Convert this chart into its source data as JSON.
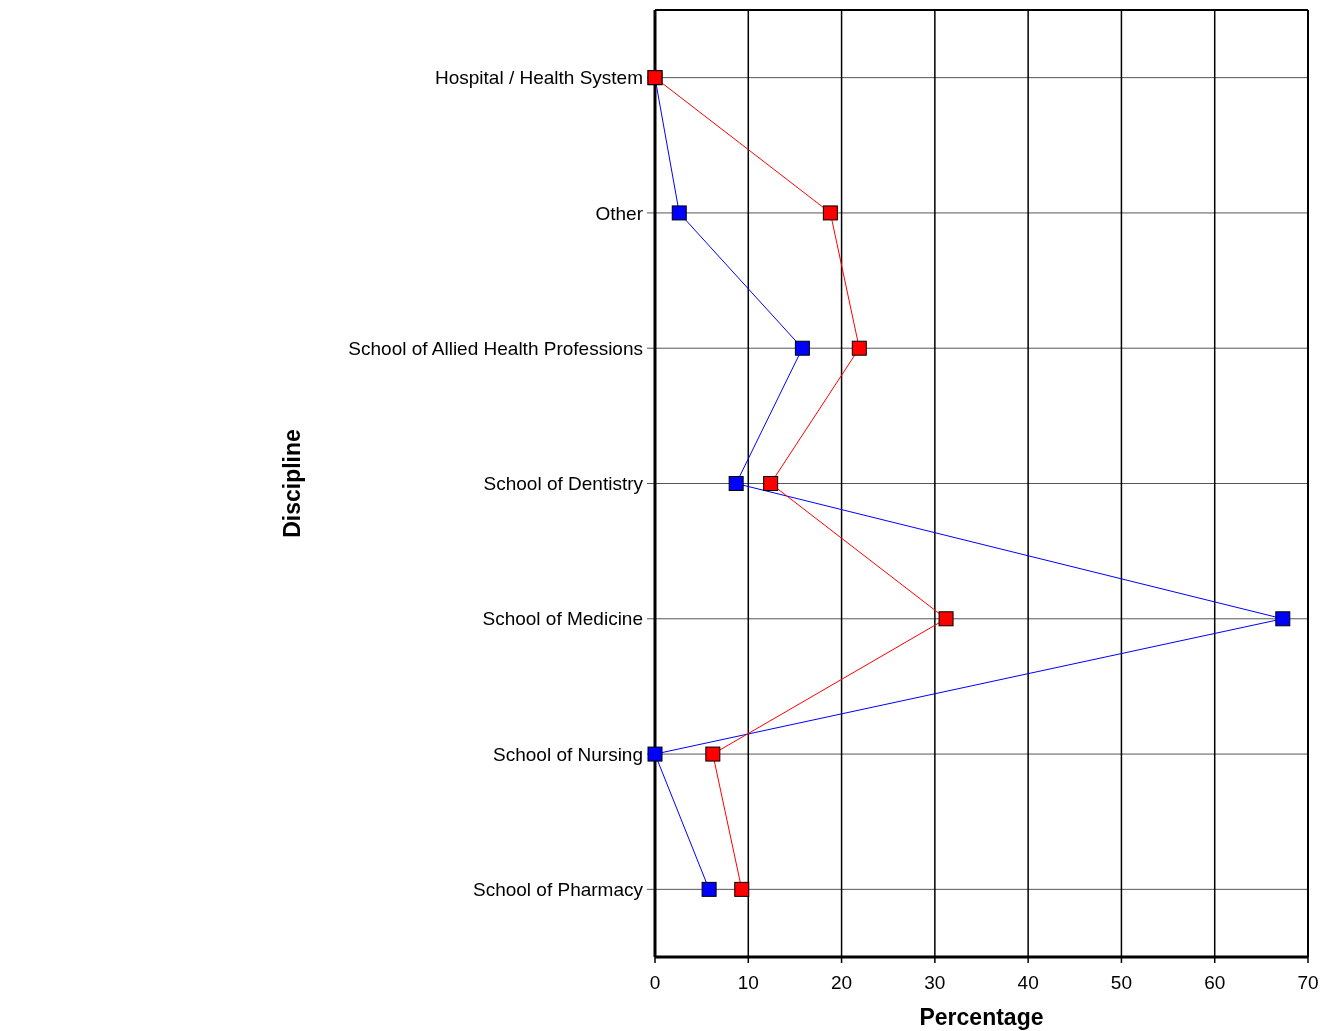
{
  "chart_data": {
    "type": "line",
    "orientation": "horizontal",
    "xlabel": "Percentage",
    "ylabel": "Discipline",
    "categories": [
      "Hospital / Health System",
      "Other",
      "School of Allied Health Professions",
      "School of Dentistry",
      "School of Medicine",
      "School of Nursing",
      "School of Pharmacy"
    ],
    "series": [
      {
        "color": "#0000ff",
        "values": [
          0,
          2.6,
          15.8,
          8.7,
          67.3,
          0,
          5.8
        ]
      },
      {
        "color": "#ff0000",
        "values": [
          0,
          18.8,
          21.9,
          12.4,
          31.2,
          6.2,
          9.3
        ]
      }
    ],
    "xlim": [
      0,
      70
    ],
    "xticks": [
      0,
      10,
      20,
      30,
      40,
      50,
      60,
      70
    ],
    "grid": true,
    "marker": "square",
    "line_style": "solid"
  }
}
